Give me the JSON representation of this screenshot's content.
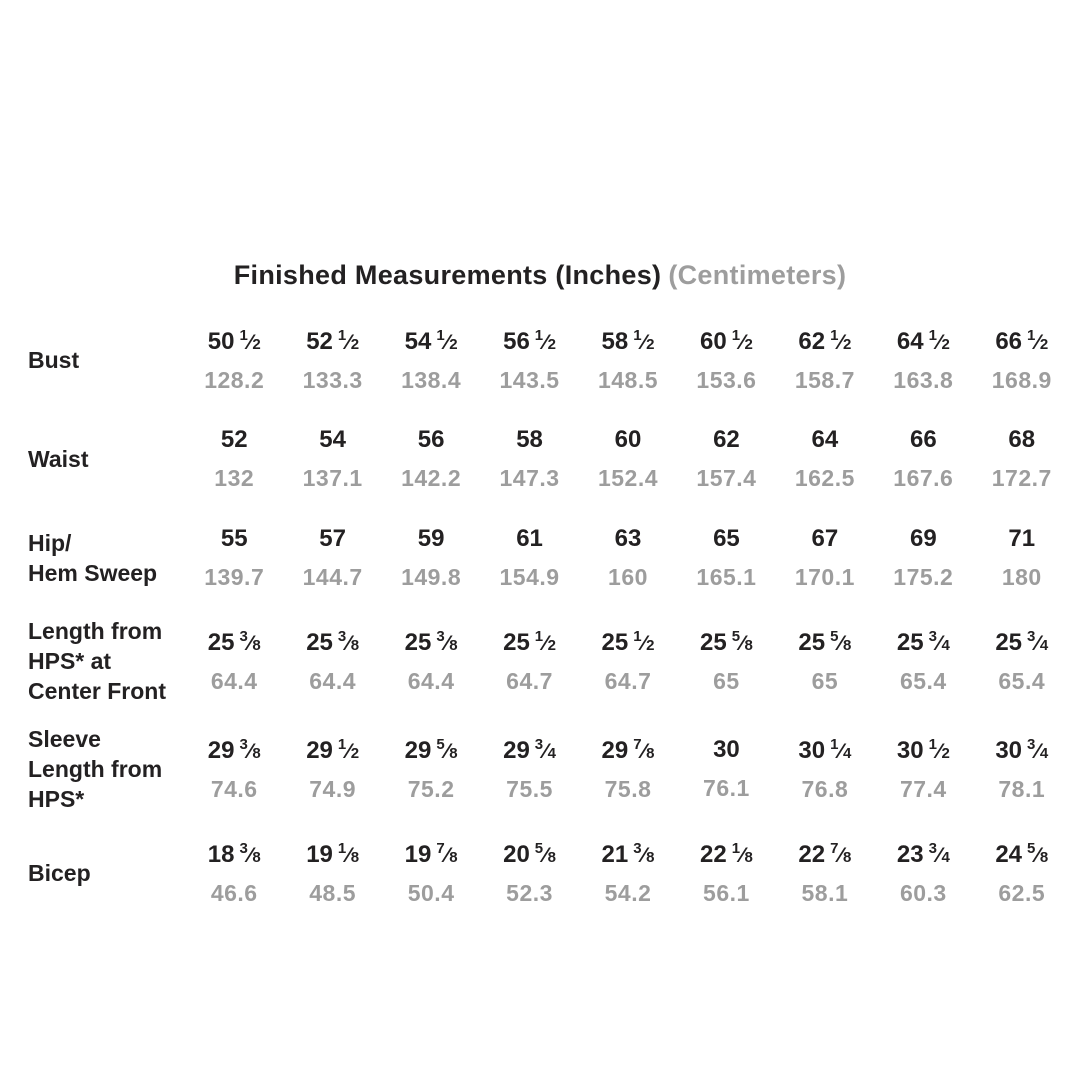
{
  "title": {
    "main": "Finished Measurements (Inches)",
    "secondary": "(Centimeters)"
  },
  "colors": {
    "dark": "#232122",
    "gray": "#9d9d9d",
    "background": "#ffffff"
  },
  "chart_data": {
    "type": "table",
    "title": "Finished Measurements (Inches) (Centimeters)",
    "columns_per_row": 9,
    "units": [
      "inches",
      "centimeters"
    ],
    "rows": [
      {
        "label": "Bust",
        "label_lines": [
          "Bust"
        ],
        "inches": [
          "50 1/2",
          "52 1/2",
          "54 1/2",
          "56 1/2",
          "58 1/2",
          "60 1/2",
          "62 1/2",
          "64 1/2",
          "66 1/2"
        ],
        "cm": [
          "128.2",
          "133.3",
          "138.4",
          "143.5",
          "148.5",
          "153.6",
          "158.7",
          "163.8",
          "168.9"
        ]
      },
      {
        "label": "Waist",
        "label_lines": [
          "Waist"
        ],
        "inches": [
          "52",
          "54",
          "56",
          "58",
          "60",
          "62",
          "64",
          "66",
          "68"
        ],
        "cm": [
          "132",
          "137.1",
          "142.2",
          "147.3",
          "152.4",
          "157.4",
          "162.5",
          "167.6",
          "172.7"
        ]
      },
      {
        "label": "Hip/ Hem Sweep",
        "label_lines": [
          "Hip/",
          "Hem Sweep"
        ],
        "inches": [
          "55",
          "57",
          "59",
          "61",
          "63",
          "65",
          "67",
          "69",
          "71"
        ],
        "cm": [
          "139.7",
          "144.7",
          "149.8",
          "154.9",
          "160",
          "165.1",
          "170.1",
          "175.2",
          "180"
        ]
      },
      {
        "label": "Length from HPS* at Center Front",
        "label_lines": [
          "Length from",
          "HPS* at",
          "Center Front"
        ],
        "inches": [
          "25 3/8",
          "25 3/8",
          "25 3/8",
          "25 1/2",
          "25 1/2",
          "25 5/8",
          "25 5/8",
          "25 3/4",
          "25 3/4"
        ],
        "cm": [
          "64.4",
          "64.4",
          "64.4",
          "64.7",
          "64.7",
          "65",
          "65",
          "65.4",
          "65.4"
        ]
      },
      {
        "label": "Sleeve Length from HPS*",
        "label_lines": [
          "Sleeve",
          "Length from",
          "HPS*"
        ],
        "inches": [
          "29 3/8",
          "29 1/2",
          "29 5/8",
          "29 3/4",
          "29 7/8",
          "30",
          "30 1/4",
          "30 1/2",
          "30 3/4"
        ],
        "cm": [
          "74.6",
          "74.9",
          "75.2",
          "75.5",
          "75.8",
          "76.1",
          "76.8",
          "77.4",
          "78.1"
        ]
      },
      {
        "label": "Bicep",
        "label_lines": [
          "Bicep"
        ],
        "inches": [
          "18 3/8",
          "19 1/8",
          "19 7/8",
          "20 5/8",
          "21 3/8",
          "22 1/8",
          "22 7/8",
          "23 3/4",
          "24 5/8"
        ],
        "cm": [
          "46.6",
          "48.5",
          "50.4",
          "52.3",
          "54.2",
          "56.1",
          "58.1",
          "60.3",
          "62.5"
        ]
      }
    ]
  }
}
